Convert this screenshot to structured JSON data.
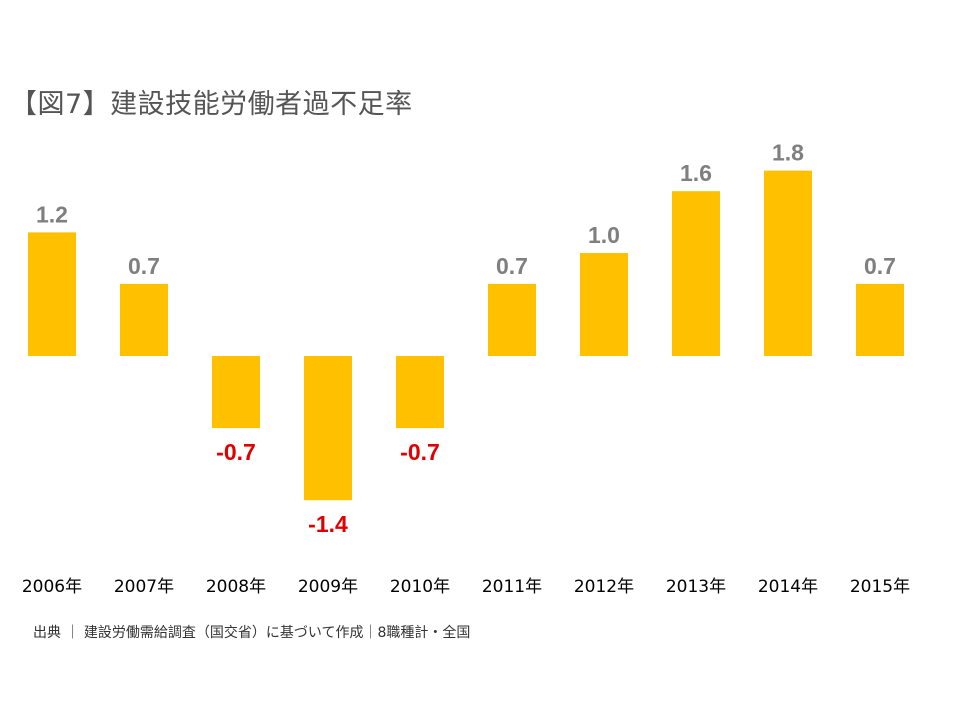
{
  "title": "【図7】建設技能労働者過不足率",
  "source": "出典 ｜ 建設労働需給調査（国交省）に基づいて作成｜8職種計・全国",
  "colors": {
    "bar": "#FFC000",
    "positive_label": "#7F7F7F",
    "negative_label": "#E00000",
    "axis_label": "#000000"
  },
  "chart_data": {
    "type": "bar",
    "title": "【図7】建設技能労働者過不足率",
    "categories": [
      "2006年",
      "2007年",
      "2008年",
      "2009年",
      "2010年",
      "2011年",
      "2012年",
      "2013年",
      "2014年",
      "2015年"
    ],
    "values": [
      1.2,
      0.7,
      -0.7,
      -1.4,
      -0.7,
      0.7,
      1.0,
      1.6,
      1.8,
      0.7
    ],
    "value_labels": [
      "1.2",
      "0.7",
      "-0.7",
      "-1.4",
      "-0.7",
      "0.7",
      "1.0",
      "1.6",
      "1.8",
      "0.7"
    ],
    "xlabel": "",
    "ylabel": "",
    "ylim": [
      -1.4,
      1.8
    ],
    "grid": false,
    "legend": false
  }
}
